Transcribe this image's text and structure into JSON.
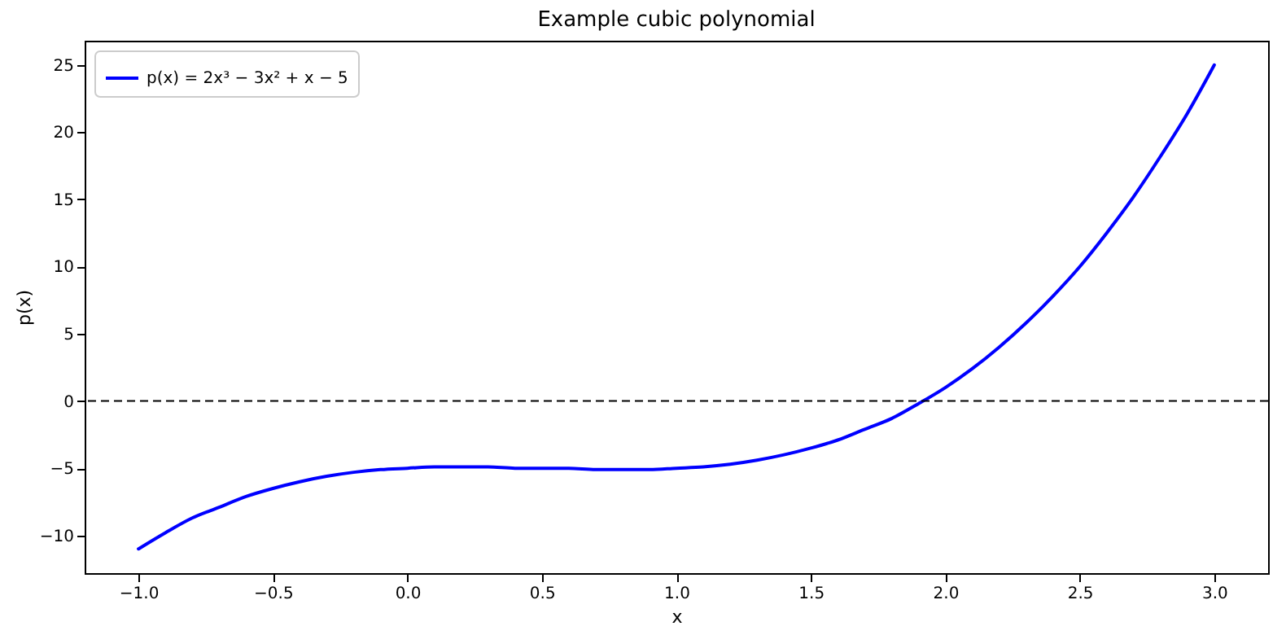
{
  "chart_data": {
    "type": "line",
    "title": "Example cubic polynomial",
    "xlabel": "x",
    "ylabel": "p(x)",
    "x": [
      -1.0,
      -0.9,
      -0.8,
      -0.7,
      -0.6,
      -0.5,
      -0.4,
      -0.3,
      -0.2,
      -0.1,
      0.0,
      0.1,
      0.2,
      0.3,
      0.4,
      0.5,
      0.6,
      0.7,
      0.8,
      0.9,
      1.0,
      1.1,
      1.2,
      1.3,
      1.4,
      1.5,
      1.6,
      1.7,
      1.8,
      1.9,
      2.0,
      2.1,
      2.2,
      2.3,
      2.4,
      2.5,
      2.6,
      2.7,
      2.8,
      2.9,
      3.0
    ],
    "series": [
      {
        "name": "p(x) = 2x³ − 3x² + x − 5",
        "color": "#0000ff",
        "values": [
          -11.0,
          -9.8,
          -8.7,
          -7.9,
          -7.1,
          -6.5,
          -6.0,
          -5.6,
          -5.3,
          -5.1,
          -5.0,
          -4.9,
          -4.9,
          -4.9,
          -5.0,
          -5.0,
          -5.0,
          -5.1,
          -5.1,
          -5.1,
          -5.0,
          -4.9,
          -4.7,
          -4.4,
          -4.0,
          -3.5,
          -2.9,
          -2.1,
          -1.3,
          -0.2,
          1.0,
          2.4,
          4.0,
          5.8,
          7.8,
          10.0,
          12.5,
          15.2,
          18.2,
          21.4,
          25.0
        ]
      }
    ],
    "xlim": [
      -1.2,
      3.2
    ],
    "xticks": [
      {
        "value": -1,
        "label": "−1.0"
      },
      {
        "value": -0.5,
        "label": "−0.5"
      },
      {
        "value": 0,
        "label": "0.0"
      },
      {
        "value": 0.5,
        "label": "0.5"
      },
      {
        "value": 1,
        "label": "1.0"
      },
      {
        "value": 1.5,
        "label": "1.5"
      },
      {
        "value": 2,
        "label": "2.0"
      },
      {
        "value": 2.5,
        "label": "2.5"
      },
      {
        "value": 3,
        "label": "3.0"
      }
    ],
    "ylim": [
      -12.8,
      26.8
    ],
    "yticks": [
      {
        "value": -10,
        "label": "−10"
      },
      {
        "value": -5,
        "label": "−5"
      },
      0,
      5,
      10,
      15,
      20,
      25
    ],
    "ref_lines": [
      {
        "axis": "y",
        "value": 0,
        "color": "#000000",
        "line_style": "dashed"
      }
    ],
    "legend": "top left",
    "grid": false
  }
}
